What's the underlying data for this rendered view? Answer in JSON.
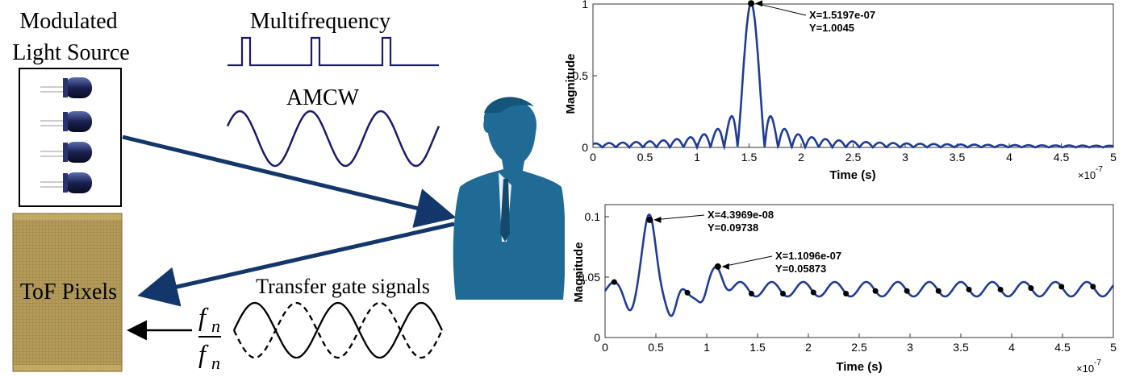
{
  "diagram": {
    "source_label_line1": "Modulated",
    "source_label_line2": "Light Source",
    "multifrequency_label": "Multifrequency",
    "amcw_label": "AMCW",
    "pixels_label": "ToF Pixels",
    "transfer_label": "Transfer gate signals",
    "fn_label": "f",
    "fn_sub": "n",
    "fn_bar_label": "f",
    "fn_bar_sub": "n",
    "colors": {
      "arrow": "#13376a",
      "person": "#1f6b96",
      "wave": "#1a1a6e",
      "chip": "#b39a5a"
    }
  },
  "chart_data": [
    {
      "type": "line",
      "xlabel": "Time (s)",
      "ylabel": "Magnitude",
      "x_exponent_label": "×10",
      "x_exponent_power": "-7",
      "xlim": [
        0,
        5
      ],
      "ylim": [
        0,
        1
      ],
      "xticks": [
        "0",
        "0.5",
        "1",
        "1.5",
        "2",
        "2.5",
        "3",
        "3.5",
        "4",
        "4.5",
        "5"
      ],
      "yticks": [
        "0",
        "0.5",
        "1"
      ],
      "series_color": "#1f3c96",
      "peaks": [
        {
          "x": 1.5197,
          "y": 1.0045,
          "label_x": "X=1.5197e-07",
          "label_y": "Y=1.0045"
        }
      ]
    },
    {
      "type": "line",
      "xlabel": "Time (s)",
      "ylabel": "Magnitude",
      "x_exponent_label": "×10",
      "x_exponent_power": "-7",
      "xlim": [
        0,
        5
      ],
      "ylim": [
        0,
        0.11
      ],
      "xticks": [
        "0",
        "0.5",
        "1",
        "1.5",
        "2",
        "2.5",
        "3",
        "3.5",
        "4",
        "4.5",
        "5"
      ],
      "yticks": [
        "0",
        "0.05",
        "0.1"
      ],
      "series_color": "#1f3c96",
      "peaks": [
        {
          "x": 0.43969,
          "y": 0.09738,
          "label_x": "X=4.3969e-08",
          "label_y": "Y=0.09738"
        },
        {
          "x": 1.1096,
          "y": 0.05873,
          "label_x": "X=1.1096e-07",
          "label_y": "Y=0.05873"
        }
      ],
      "markers_x": [
        0.09,
        0.44,
        0.81,
        1.11,
        1.44,
        1.75,
        2.05,
        2.37,
        2.66,
        2.97,
        3.28,
        3.58,
        3.89,
        4.19,
        4.49,
        4.8
      ]
    }
  ]
}
